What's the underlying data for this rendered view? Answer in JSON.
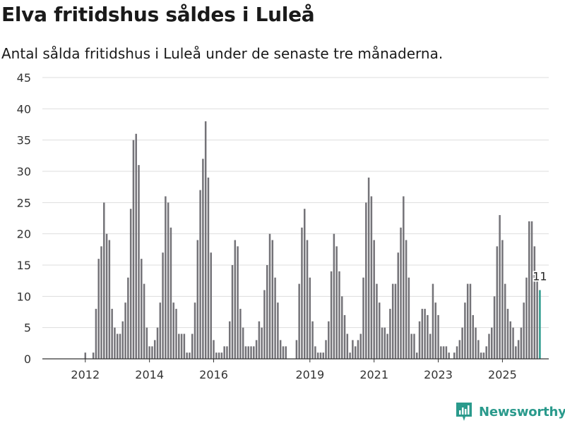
{
  "header": {
    "title": "Elva fritidshus såldes i Luleå",
    "subtitle": "Antal sålda fritidshus i Luleå under de senaste tre månaderna."
  },
  "branding": {
    "name": "Newsworthy",
    "icon": "newsworthy-logo-icon",
    "color": "#2a9a8c"
  },
  "colors": {
    "bar": "#747378",
    "highlight": "#2a9a8c",
    "grid": "#dddddd",
    "text": "#333333"
  },
  "chart_data": {
    "type": "bar",
    "title": "Elva fritidshus såldes i Luleå",
    "subtitle": "Antal sålda fritidshus i Luleå under de senaste tre månaderna.",
    "xlabel": "",
    "ylabel": "",
    "ylim": [
      0,
      45
    ],
    "yticks": [
      0,
      5,
      10,
      15,
      20,
      25,
      30,
      35,
      40,
      45
    ],
    "xticks": [
      {
        "label": "2012",
        "index": 8
      },
      {
        "label": "2014",
        "index": 32
      },
      {
        "label": "2016",
        "index": 56
      },
      {
        "label": "2019",
        "index": 92
      },
      {
        "label": "2021",
        "index": 116
      },
      {
        "label": "2023",
        "index": 140
      },
      {
        "label": "2025",
        "index": 164
      }
    ],
    "grid": true,
    "start_period": "2011-09",
    "frequency": "monthly",
    "values": [
      0,
      0,
      0,
      0,
      0,
      0,
      0,
      0,
      1,
      0,
      0,
      1,
      8,
      16,
      18,
      25,
      20,
      19,
      8,
      5,
      4,
      4,
      6,
      9,
      13,
      24,
      35,
      36,
      31,
      16,
      12,
      5,
      2,
      2,
      3,
      5,
      9,
      17,
      26,
      25,
      21,
      9,
      8,
      4,
      4,
      4,
      1,
      1,
      4,
      9,
      19,
      27,
      32,
      38,
      29,
      17,
      3,
      1,
      1,
      1,
      2,
      2,
      6,
      15,
      19,
      18,
      8,
      5,
      2,
      2,
      2,
      2,
      3,
      6,
      5,
      11,
      15,
      20,
      19,
      13,
      9,
      3,
      2,
      2,
      0,
      0,
      0,
      3,
      12,
      21,
      24,
      19,
      13,
      6,
      2,
      1,
      1,
      1,
      3,
      6,
      14,
      20,
      18,
      14,
      10,
      7,
      4,
      1,
      3,
      2,
      3,
      4,
      13,
      25,
      29,
      26,
      19,
      12,
      9,
      5,
      5,
      4,
      8,
      12,
      12,
      17,
      21,
      26,
      19,
      13,
      4,
      4,
      1,
      6,
      8,
      8,
      7,
      4,
      12,
      9,
      7,
      2,
      2,
      2,
      1,
      0,
      1,
      2,
      3,
      5,
      9,
      12,
      12,
      7,
      5,
      3,
      1,
      1,
      2,
      4,
      5,
      10,
      18,
      23,
      19,
      12,
      8,
      6,
      5,
      2,
      3,
      5,
      9,
      13,
      22,
      22,
      18,
      13,
      11
    ],
    "highlight_last": true,
    "annotation": {
      "index": 178,
      "text": "11"
    }
  }
}
